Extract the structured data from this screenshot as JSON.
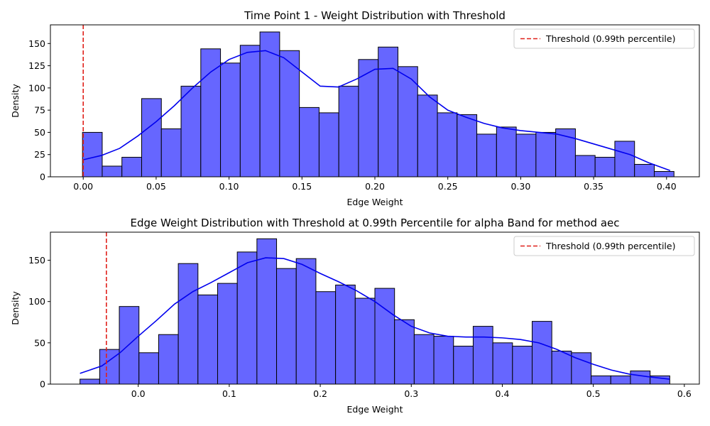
{
  "chart_data": [
    {
      "type": "histogram",
      "title": "Time Point 1 - Weight Distribution with Threshold",
      "xlabel": "Edge Weight",
      "ylabel": "Density",
      "xlim": [
        -0.0225,
        0.4225
      ],
      "ylim": [
        0,
        171
      ],
      "xticks": [
        0.0,
        0.05,
        0.1,
        0.15,
        0.2,
        0.25,
        0.3,
        0.35,
        0.4
      ],
      "xtick_labels": [
        "0.00",
        "0.05",
        "0.10",
        "0.15",
        "0.20",
        "0.25",
        "0.30",
        "0.35",
        "0.40"
      ],
      "yticks": [
        0,
        25,
        50,
        75,
        100,
        125,
        150
      ],
      "ytick_labels": [
        "0",
        "25",
        "50",
        "75",
        "100",
        "125",
        "150"
      ],
      "bin_start": -0.0005,
      "bin_width": 0.01352,
      "values": [
        50,
        12,
        22,
        88,
        54,
        102,
        144,
        128,
        148,
        163,
        142,
        78,
        72,
        102,
        132,
        146,
        124,
        92,
        72,
        70,
        48,
        56,
        48,
        50,
        54,
        24,
        22,
        40,
        14,
        6
      ],
      "kde": {
        "x": [
          -0.0005,
          0.0125,
          0.025,
          0.0375,
          0.05,
          0.0625,
          0.075,
          0.0875,
          0.1,
          0.1125,
          0.125,
          0.1375,
          0.15,
          0.1625,
          0.175,
          0.1875,
          0.2,
          0.2125,
          0.225,
          0.2375,
          0.25,
          0.2625,
          0.275,
          0.2875,
          0.3,
          0.3125,
          0.325,
          0.3375,
          0.35,
          0.3625,
          0.375,
          0.3875,
          0.4025
        ],
        "y": [
          19,
          24,
          32,
          46,
          62,
          80,
          100,
          118,
          132,
          140,
          142,
          134,
          118,
          102,
          101,
          110,
          121,
          122,
          110,
          90,
          75,
          67,
          60,
          55,
          52,
          50,
          48,
          43,
          37,
          31,
          25,
          16,
          7
        ]
      },
      "threshold": {
        "x": 0.0,
        "label": "Threshold (0.99th percentile)",
        "color": "#e0201a"
      },
      "legend_position": "upper right",
      "bar_color": "#6666ff",
      "kde_color": "#0000ee",
      "grid": false
    },
    {
      "type": "histogram",
      "title": "Edge Weight Distribution with Threshold at 0.99th Percentile for alpha Band for method aec",
      "xlabel": "Edge Weight",
      "ylabel": "Density",
      "xlim": [
        -0.0965,
        0.6165
      ],
      "ylim": [
        0,
        184
      ],
      "xticks": [
        0.0,
        0.1,
        0.2,
        0.3,
        0.4,
        0.5,
        0.6
      ],
      "xtick_labels": [
        "0.0",
        "0.1",
        "0.2",
        "0.3",
        "0.4",
        "0.5",
        "0.6"
      ],
      "yticks": [
        0,
        50,
        100,
        150
      ],
      "ytick_labels": [
        "0",
        "50",
        "100",
        "150"
      ],
      "bin_start": -0.064,
      "bin_width": 0.0216,
      "values": [
        6,
        42,
        94,
        38,
        60,
        146,
        108,
        122,
        160,
        176,
        140,
        152,
        112,
        120,
        104,
        116,
        78,
        60,
        58,
        46,
        70,
        50,
        46,
        76,
        40,
        38,
        10,
        10,
        16,
        10
      ],
      "kde": {
        "x": [
          -0.064,
          -0.04,
          -0.02,
          0.0,
          0.02,
          0.04,
          0.06,
          0.08,
          0.1,
          0.12,
          0.14,
          0.16,
          0.18,
          0.2,
          0.22,
          0.24,
          0.26,
          0.28,
          0.3,
          0.32,
          0.34,
          0.36,
          0.38,
          0.4,
          0.42,
          0.44,
          0.46,
          0.48,
          0.5,
          0.52,
          0.54,
          0.56,
          0.584
        ],
        "y": [
          13,
          22,
          38,
          58,
          77,
          97,
          112,
          123,
          135,
          147,
          153,
          152,
          145,
          134,
          124,
          113,
          100,
          84,
          70,
          62,
          58,
          57,
          57,
          56,
          54,
          50,
          42,
          32,
          24,
          17,
          12,
          9,
          6
        ]
      },
      "threshold": {
        "x": -0.035,
        "label": "Threshold (0.99th percentile)",
        "color": "#e0201a"
      },
      "legend_position": "upper right",
      "bar_color": "#6666ff",
      "kde_color": "#0000ee",
      "grid": false
    }
  ]
}
